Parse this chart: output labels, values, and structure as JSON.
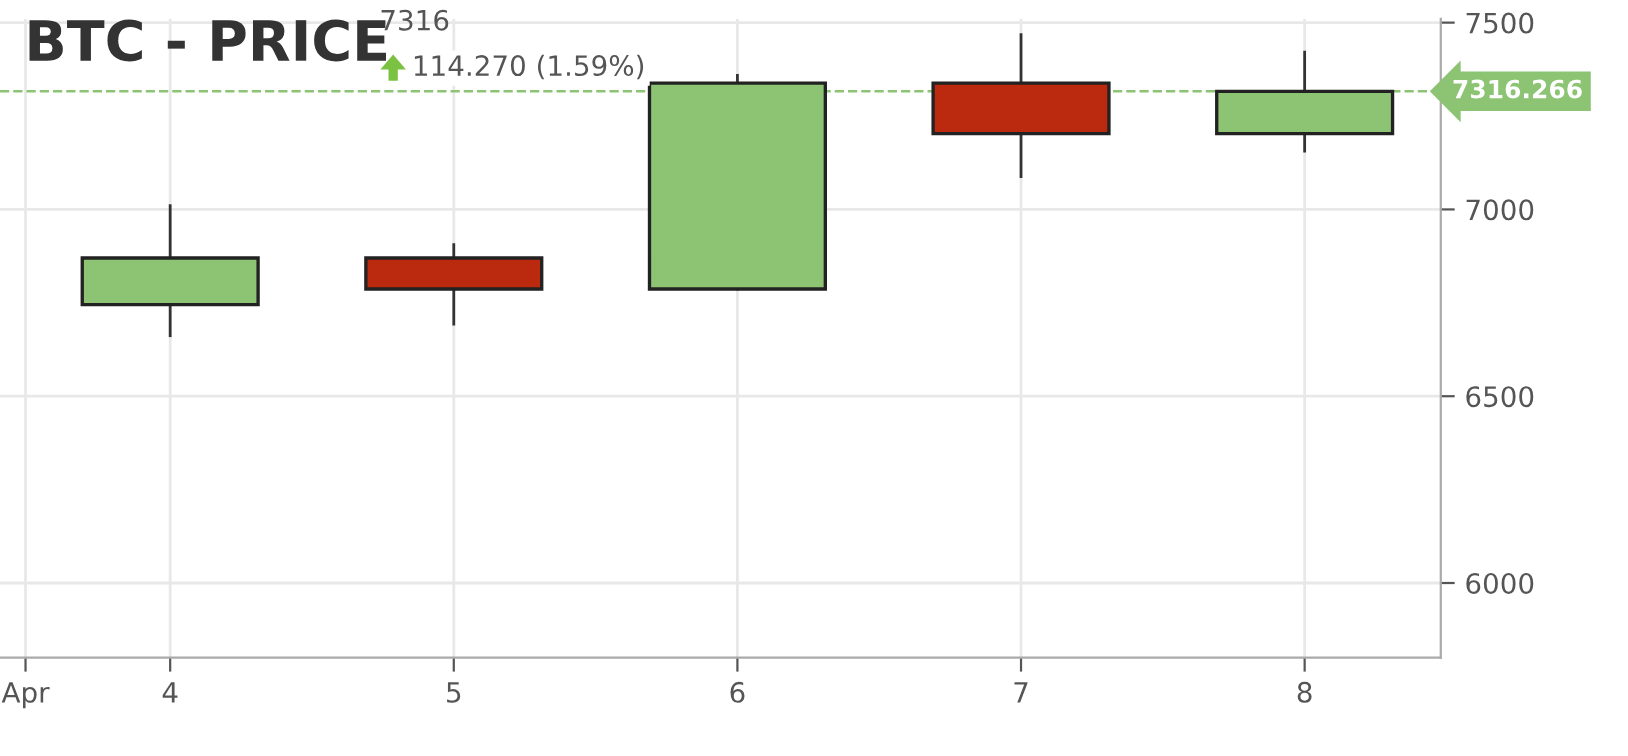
{
  "chart_data": {
    "type": "candlestick",
    "title": "BTC - PRICE",
    "annotations": [
      "7316",
      "114.270 (1.59%)"
    ],
    "x": [
      4,
      5,
      6,
      7,
      8
    ],
    "ohlc": [
      [
        6745,
        7010,
        6662,
        6870
      ],
      [
        6870,
        6906,
        6693,
        6787
      ],
      [
        6787,
        7359,
        6787,
        7338
      ],
      [
        7338,
        7468,
        7088,
        7203
      ],
      [
        7203,
        7421,
        7156,
        7316
      ]
    ],
    "colors": [
      "#8cc474",
      "#bb2a0f",
      "#8cc474",
      "#bb2a0f",
      "#8cc474"
    ],
    "xlim": [
      3.4,
      8.48
    ],
    "xticks": [
      {
        "value": 3.49,
        "label": "Apr"
      },
      4,
      5,
      6,
      7,
      8
    ],
    "ylim": [
      5800,
      7510
    ],
    "yticks": [
      6000,
      6500,
      7000,
      7500
    ],
    "ref_lines": [
      {
        "axis": "y",
        "value": 7316.266,
        "label": "7316.266",
        "color": "#8cc474",
        "line_style": "dashed"
      }
    ],
    "grid": true
  }
}
